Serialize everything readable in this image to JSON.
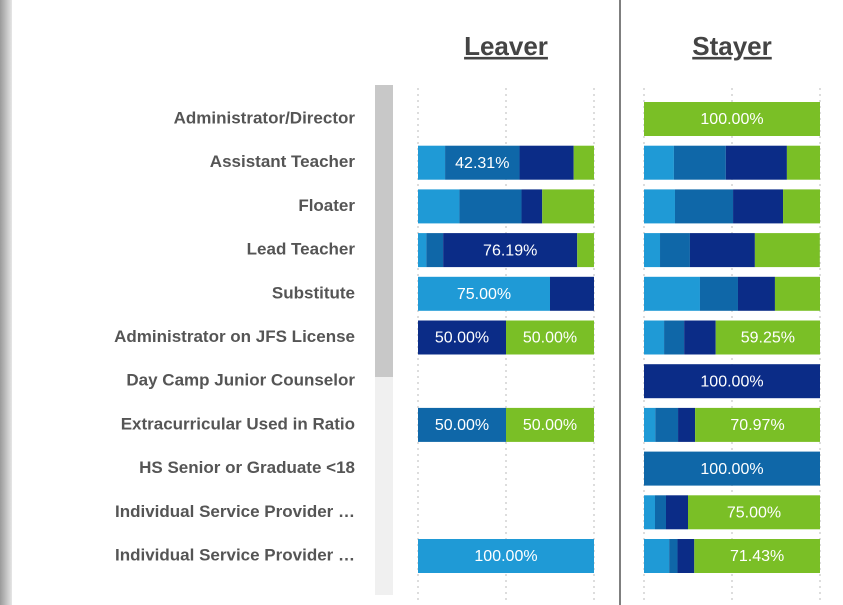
{
  "chart_data": {
    "type": "bar",
    "orientation": "horizontal",
    "stacked": true,
    "categories": [
      "Administrator/Director",
      "Assistant Teacher",
      "Floater",
      "Lead Teacher",
      "Substitute",
      "Administrator on JFS License",
      "Day Camp Junior Counselor",
      "Extracurricular Used in Ratio",
      "HS Senior or Graduate <18",
      "Individual Service Provider …",
      "Individual Service Provider …"
    ],
    "xlim": [
      0,
      100
    ],
    "xticks": [
      0,
      50,
      100
    ],
    "grid": true,
    "panels": [
      {
        "title": "Leaver",
        "series": [
          {
            "color": "#1f9ad6",
            "values": [
              null,
              15.38,
              23.53,
              4.76,
              75.0,
              0,
              null,
              0,
              null,
              null,
              100.0
            ],
            "value_labels": [
              null,
              null,
              null,
              null,
              "75.00%",
              null,
              null,
              null,
              null,
              null,
              "100.00%"
            ]
          },
          {
            "color": "#0f67a8",
            "values": [
              null,
              42.31,
              35.29,
              9.52,
              0,
              0,
              null,
              50.0,
              null,
              null,
              0
            ],
            "value_labels": [
              null,
              "42.31%",
              null,
              null,
              null,
              null,
              null,
              "50.00%",
              null,
              null,
              null
            ]
          },
          {
            "color": "#0b2c87",
            "values": [
              null,
              30.77,
              11.76,
              76.19,
              25.0,
              50.0,
              null,
              0,
              null,
              null,
              0
            ],
            "value_labels": [
              null,
              null,
              null,
              "76.19%",
              null,
              "50.00%",
              null,
              null,
              null,
              null,
              null
            ]
          },
          {
            "color": "#7abf26",
            "values": [
              null,
              11.54,
              29.41,
              9.52,
              0,
              50.0,
              null,
              50.0,
              null,
              null,
              0
            ],
            "value_labels": [
              null,
              null,
              null,
              null,
              null,
              "50.00%",
              null,
              "50.00%",
              null,
              null,
              null
            ]
          }
        ]
      },
      {
        "title": "Stayer",
        "series": [
          {
            "color": "#1f9ad6",
            "values": [
              0,
              17.0,
              17.6,
              9.1,
              31.8,
              11.4,
              0,
              6.45,
              0,
              6.25,
              14.29
            ],
            "value_labels": [
              null,
              null,
              null,
              null,
              null,
              null,
              null,
              null,
              null,
              null,
              null
            ]
          },
          {
            "color": "#0f67a8",
            "values": [
              0,
              29.5,
              33.0,
              17.0,
              21.6,
              11.4,
              0,
              12.9,
              100.0,
              6.25,
              4.76
            ],
            "value_labels": [
              null,
              null,
              null,
              null,
              null,
              null,
              null,
              null,
              "100.00%",
              null,
              null
            ]
          },
          {
            "color": "#0b2c87",
            "values": [
              0,
              34.7,
              28.4,
              36.9,
              21.0,
              17.95,
              100.0,
              9.68,
              0,
              12.5,
              9.52
            ],
            "value_labels": [
              null,
              null,
              null,
              null,
              null,
              null,
              "100.00%",
              null,
              null,
              null,
              null
            ]
          },
          {
            "color": "#7abf26",
            "values": [
              100.0,
              18.8,
              21.0,
              36.9,
              25.6,
              59.25,
              0,
              70.97,
              0,
              75.0,
              71.43
            ],
            "value_labels": [
              "100.00%",
              null,
              null,
              null,
              null,
              "59.25%",
              null,
              "70.97%",
              null,
              "75.00%",
              "71.43%"
            ]
          }
        ]
      }
    ]
  }
}
